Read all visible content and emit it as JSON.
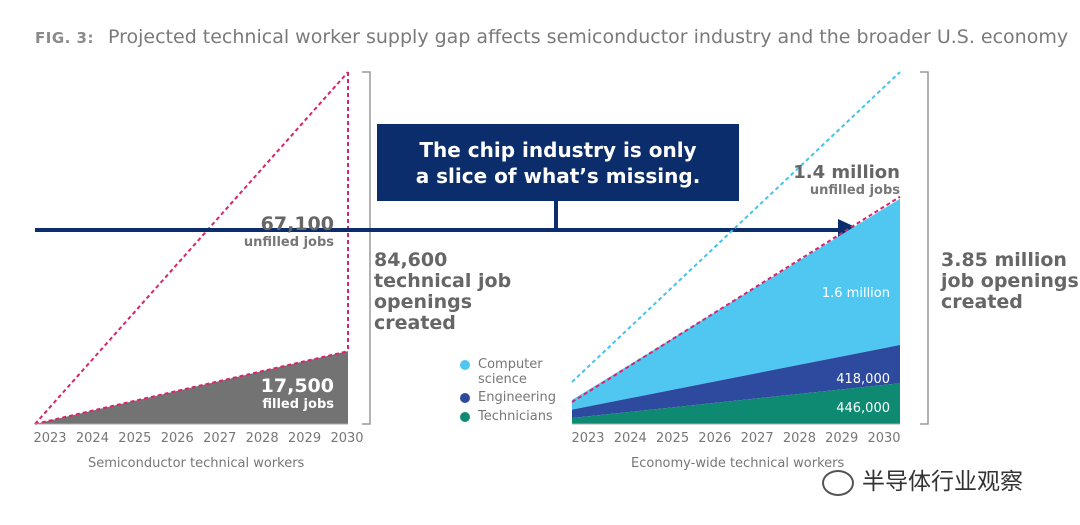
{
  "figure": {
    "label": "FIG. 3:",
    "title": "Projected technical worker supply gap affects semiconductor industry and the broader U.S. economy"
  },
  "callout": {
    "line1": "The chip industry is only",
    "line2": "a slice of what’s missing."
  },
  "watermark": {
    "text": "半导体行业观察",
    "icon": "wechat-icon"
  },
  "colors": {
    "filled_gray": "#737373",
    "projection_pink": "#d6246e",
    "projection_cyan": "#45c3ea",
    "computer_science": "#4fc7f1",
    "engineering": "#2e4a9e",
    "technicians": "#0f8a72",
    "callout_navy": "#0c2d6b"
  },
  "chart_data": [
    {
      "type": "area",
      "caption": "Semiconductor technical workers",
      "x": [
        2023,
        2024,
        2025,
        2026,
        2027,
        2028,
        2029,
        2030
      ],
      "filled": {
        "label_value": "17,500",
        "label_text": "filled jobs",
        "value": 17500
      },
      "unfilled": {
        "label_value": "67,100",
        "label_text": "unfilled jobs",
        "value": 67100
      },
      "total": {
        "value": 84600,
        "line1": "84,600",
        "line2": "technical job",
        "line3": "openings",
        "line4": "created"
      }
    },
    {
      "type": "area",
      "caption": "Economy-wide technical workers",
      "x": [
        2023,
        2024,
        2025,
        2026,
        2027,
        2028,
        2029,
        2030
      ],
      "series": [
        {
          "name": "Computer science",
          "legend_line1": "Computer",
          "legend_line2": "science",
          "value_label": "1.6 million",
          "value": 1600000
        },
        {
          "name": "Engineering",
          "legend_line1": "Engineering",
          "value_label": "418,000",
          "value": 418000
        },
        {
          "name": "Technicians",
          "legend_line1": "Technicians",
          "value_label": "446,000",
          "value": 446000
        }
      ],
      "unfilled": {
        "label_value": "1.4 million",
        "label_text": "unfilled jobs",
        "value": 1400000
      },
      "total": {
        "value": 3850000,
        "line1": "3.85 million",
        "line2": "job openings",
        "line3": "created"
      }
    }
  ]
}
